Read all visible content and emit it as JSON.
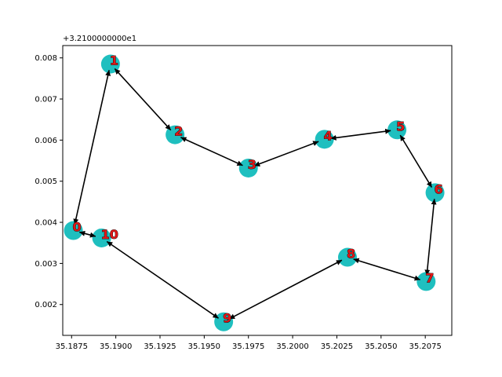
{
  "chart_data": {
    "type": "scatter",
    "title": "",
    "xlabel": "",
    "ylabel": "",
    "y_offset_label": "+3.2100000000e1",
    "xlim": [
      35.187,
      35.209
    ],
    "ylim": [
      0.00125,
      0.0083
    ],
    "x_ticks": [
      {
        "value": 35.1875,
        "label": "35.1875"
      },
      {
        "value": 35.19,
        "label": "35.1900"
      },
      {
        "value": 35.1925,
        "label": "35.1925"
      },
      {
        "value": 35.195,
        "label": "35.1950"
      },
      {
        "value": 35.1975,
        "label": "35.1975"
      },
      {
        "value": 35.2,
        "label": "35.2000"
      },
      {
        "value": 35.2025,
        "label": "35.2025"
      },
      {
        "value": 35.205,
        "label": "35.2050"
      },
      {
        "value": 35.2075,
        "label": "35.2075"
      }
    ],
    "y_ticks": [
      {
        "value": 0.002,
        "label": "0.002"
      },
      {
        "value": 0.003,
        "label": "0.003"
      },
      {
        "value": 0.004,
        "label": "0.004"
      },
      {
        "value": 0.005,
        "label": "0.005"
      },
      {
        "value": 0.006,
        "label": "0.006"
      },
      {
        "value": 0.007,
        "label": "0.007"
      },
      {
        "value": 0.008,
        "label": "0.008"
      }
    ],
    "points": [
      {
        "label": "0",
        "x": 35.1876,
        "y": 0.0038
      },
      {
        "label": "1",
        "x": 35.1897,
        "y": 0.00785
      },
      {
        "label": "2",
        "x": 35.19335,
        "y": 0.00613
      },
      {
        "label": "3",
        "x": 35.1975,
        "y": 0.00532
      },
      {
        "label": "4",
        "x": 35.2018,
        "y": 0.00602
      },
      {
        "label": "5",
        "x": 35.2059,
        "y": 0.00625
      },
      {
        "label": "6",
        "x": 35.20805,
        "y": 0.00472
      },
      {
        "label": "7",
        "x": 35.20755,
        "y": 0.00256
      },
      {
        "label": "8",
        "x": 35.2031,
        "y": 0.00315
      },
      {
        "label": "9",
        "x": 35.1961,
        "y": 0.00158
      },
      {
        "label": "10",
        "x": 35.1892,
        "y": 0.00362
      }
    ],
    "route": [
      0,
      1,
      2,
      3,
      4,
      5,
      6,
      7,
      8,
      9,
      10,
      0
    ],
    "grid": false,
    "colors": {
      "node": "#1fbfbf",
      "edge": "#000000",
      "label_fill": "#e01818",
      "label_stroke": "#000000"
    }
  }
}
